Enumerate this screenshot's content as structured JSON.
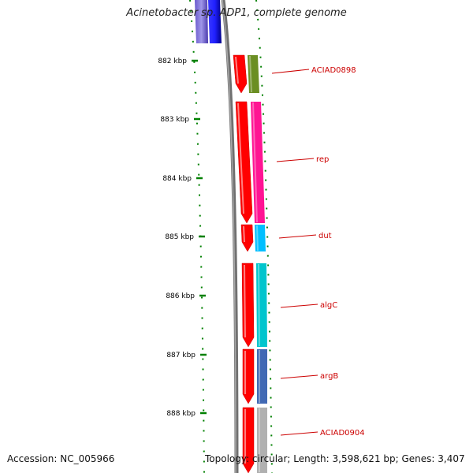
{
  "title": "Acinetobacter sp. ADP1, complete genome",
  "footer": {
    "accession": "Accession: NC_005966",
    "meta": "Topology: circular; Length: 3,598,621 bp; Genes: 3,407"
  },
  "ticks": [
    {
      "label": "882 kbp"
    },
    {
      "label": "883 kbp"
    },
    {
      "label": "884 kbp"
    },
    {
      "label": "885 kbp"
    },
    {
      "label": "886 kbp"
    },
    {
      "label": "887 kbp"
    },
    {
      "label": "888 kbp"
    }
  ],
  "genes": [
    {
      "label": "ACIAD0898",
      "color": "#6b8e23"
    },
    {
      "label": "rep",
      "color": "#ff1493"
    },
    {
      "label": "dut",
      "color": "#00bfff"
    },
    {
      "label": "algC",
      "color": "#00c5cd"
    },
    {
      "label": "argB",
      "color": "#4169b4"
    },
    {
      "label": "ACIAD0904",
      "color": "#b0b0b0"
    }
  ],
  "colors": {
    "cds": "#ff0000",
    "previous_feature": "#0000ff",
    "backbone": "#808080",
    "tick": "#008000",
    "label": "#cc0000"
  }
}
